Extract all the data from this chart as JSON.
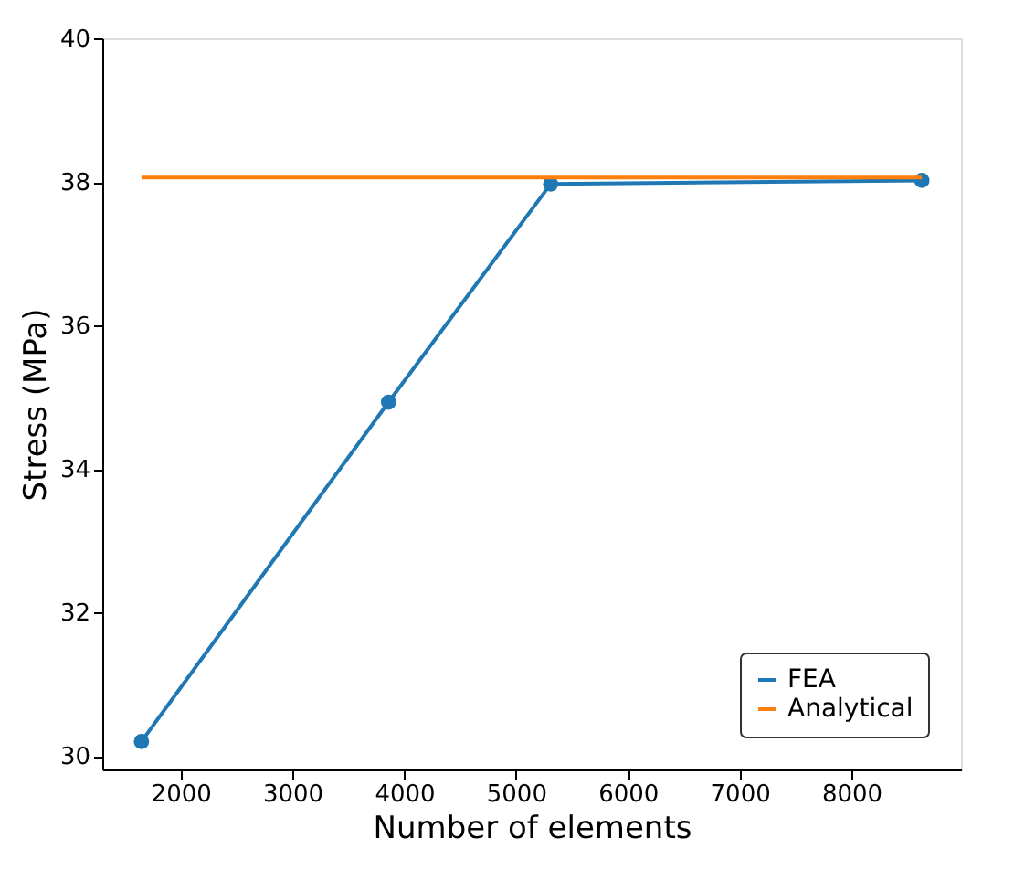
{
  "chart_data": {
    "type": "line",
    "xlabel": "Number of elements",
    "ylabel": "Stress (MPa)",
    "xlim": [
      1300,
      8980
    ],
    "xticks": [
      2000,
      3000,
      4000,
      5000,
      6000,
      7000,
      8000
    ],
    "ylim": [
      29.81,
      40
    ],
    "yticks": [
      30,
      32,
      34,
      36,
      38,
      40
    ],
    "grid": false,
    "legend": "bottom right",
    "line_style": "solid",
    "series": [
      {
        "name": "FEA",
        "color": "#1f77b4",
        "marker": "circle",
        "x": [
          1650,
          3860,
          5310,
          8630
        ],
        "values": [
          30.2,
          34.93,
          37.97,
          38.02
        ]
      },
      {
        "name": "Analytical",
        "color": "#ff7f0e",
        "marker": "none",
        "x": [
          1650,
          8630
        ],
        "values": [
          38.06,
          38.06
        ]
      }
    ]
  }
}
